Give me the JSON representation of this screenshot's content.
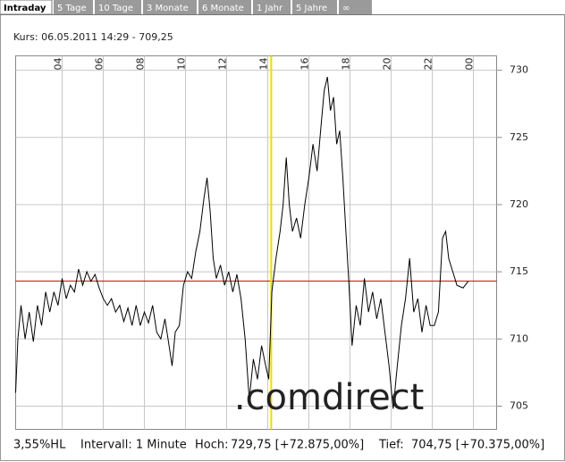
{
  "tabs": [
    "Intraday",
    "5 Tage",
    "10 Tage",
    "3 Monate",
    "6 Monate",
    "1 Jahr",
    "5 Jahre",
    "∞"
  ],
  "info": "Kurs: 06.05.2011 14:29 - 709,25",
  "chart_data": {
    "type": "line",
    "x": [
      1.74,
      1.85,
      2.0,
      2.2,
      2.4,
      2.6,
      2.8,
      3.0,
      3.2,
      3.4,
      3.6,
      3.8,
      4.0,
      4.2,
      4.4,
      4.6,
      4.8,
      5.0,
      5.2,
      5.4,
      5.6,
      5.8,
      6.0,
      6.2,
      6.4,
      6.6,
      6.8,
      7.0,
      7.2,
      7.4,
      7.6,
      7.8,
      8.0,
      8.2,
      8.4,
      8.6,
      8.8,
      9.0,
      9.2,
      9.35,
      9.5,
      9.7,
      9.9,
      10.1,
      10.3,
      10.5,
      10.7,
      10.9,
      11.05,
      11.2,
      11.35,
      11.5,
      11.7,
      11.9,
      12.1,
      12.3,
      12.5,
      12.7,
      12.9,
      13.1,
      13.3,
      13.5,
      13.7,
      13.9,
      14.05,
      14.2,
      14.4,
      14.6,
      14.75,
      14.9,
      15.05,
      15.2,
      15.4,
      15.6,
      15.8,
      16.0,
      16.2,
      16.4,
      16.6,
      16.75,
      16.9,
      17.05,
      17.2,
      17.35,
      17.5,
      17.65,
      17.8,
      17.95,
      18.1,
      18.3,
      18.5,
      18.7,
      18.9,
      19.1,
      19.3,
      19.5,
      19.7,
      19.9,
      20.1,
      20.3,
      20.5,
      20.7,
      20.9,
      21.1,
      21.3,
      21.5,
      21.7,
      21.9,
      22.1,
      22.3,
      22.5,
      22.65,
      22.8,
      23.0,
      23.2,
      23.5,
      23.75
    ],
    "values": [
      706,
      710,
      712.5,
      710,
      712,
      709.8,
      712.5,
      711,
      713.5,
      712,
      713.5,
      712.5,
      714.5,
      713,
      714,
      713.5,
      715.2,
      714,
      715,
      714.3,
      714.8,
      713.8,
      713,
      712.5,
      713,
      712,
      712.5,
      711.3,
      712.3,
      711,
      712.5,
      711,
      712,
      711.2,
      712.5,
      710.5,
      710,
      711.5,
      709.5,
      708,
      710.5,
      711,
      714,
      715,
      714.5,
      716.5,
      718,
      720.5,
      722,
      719.5,
      716,
      714.5,
      715.5,
      714,
      715,
      713.5,
      714.8,
      713,
      710,
      705.5,
      708.5,
      707,
      709.5,
      708,
      707,
      713.5,
      716,
      718,
      720,
      723.5,
      720,
      718,
      719,
      717.5,
      720,
      722,
      724.5,
      722.5,
      726,
      728.5,
      729.5,
      727,
      728,
      724.5,
      725.5,
      722,
      718,
      714,
      709.5,
      712.5,
      711,
      714.5,
      712,
      713.5,
      711.5,
      713,
      710.5,
      708,
      704.8,
      708,
      711,
      713,
      716,
      712,
      713,
      710.5,
      712.5,
      711,
      711,
      712,
      717.5,
      718,
      716,
      715,
      714,
      713.8,
      714.3
    ],
    "color": "#000000",
    "xlim": [
      1.74,
      25.13
    ],
    "xticks": [
      {
        "value": 4,
        "label": "04"
      },
      {
        "value": 6,
        "label": "06"
      },
      {
        "value": 8,
        "label": "08"
      },
      10,
      12,
      14,
      16,
      18,
      20,
      22,
      {
        "value": 24,
        "label": "00"
      }
    ],
    "ylim": [
      703.27,
      731.07
    ],
    "yticks": [
      705,
      710,
      715,
      720,
      725,
      730
    ],
    "grid": true,
    "reference_line": 714.3,
    "reference_color": "#cc0000",
    "marker_x": 14.17,
    "marker_color": "#f5d800"
  },
  "footer": [
    "3,55%HL",
    "Intervall: 1 Minute",
    "Hoch:",
    "729,75 [+72.875,00%]",
    "Tief:",
    "704,75 [+70.375,00%]"
  ],
  "watermark": [
    ".com",
    "direct"
  ]
}
